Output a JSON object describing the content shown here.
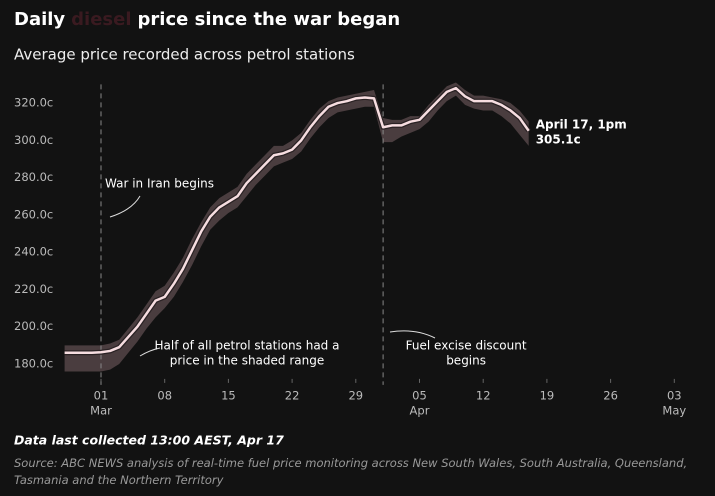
{
  "chart_data": {
    "type": "line",
    "title_parts": [
      "Daily",
      "diesel",
      "price since the war began"
    ],
    "subtitle": "Average price recorded across petrol stations",
    "note": "Data last collected 13:00 AEST, Apr 17",
    "source": "Source: ABC NEWS analysis of real-time fuel price monitoring across New South Wales, South Australia, Queensland, Tasmania and the Northern Territory",
    "color": "#f6dde0",
    "band_color": "#4a3d3f",
    "x": [
      "02-25",
      "02-26",
      "02-27",
      "02-28",
      "03-01",
      "03-02",
      "03-03",
      "03-04",
      "03-05",
      "03-06",
      "03-07",
      "03-08",
      "03-09",
      "03-10",
      "03-11",
      "03-12",
      "03-13",
      "03-14",
      "03-15",
      "03-16",
      "03-17",
      "03-18",
      "03-19",
      "03-20",
      "03-21",
      "03-22",
      "03-23",
      "03-24",
      "03-25",
      "03-26",
      "03-27",
      "03-28",
      "03-29",
      "03-30",
      "03-31",
      "04-01",
      "04-02",
      "04-03",
      "04-04",
      "04-05",
      "04-06",
      "04-07",
      "04-08",
      "04-09",
      "04-10",
      "04-11",
      "04-12",
      "04-13",
      "04-14",
      "04-15",
      "04-16",
      "04-17"
    ],
    "values": [
      186,
      186,
      186,
      186,
      186.3,
      187,
      189,
      194.5,
      200,
      207,
      214,
      216,
      223,
      231,
      241,
      251,
      259,
      264,
      267,
      270,
      277,
      282,
      287,
      292,
      293,
      295,
      300,
      307,
      313,
      318,
      320,
      321,
      322.5,
      323,
      322.5,
      307,
      308,
      308,
      310,
      311,
      316,
      321,
      326,
      328,
      323.6,
      321,
      321,
      321,
      319,
      316,
      312,
      305.1
    ],
    "low": [
      176,
      176,
      176,
      176,
      176,
      177,
      180,
      186,
      192,
      199,
      205,
      210,
      216,
      224,
      233,
      243,
      252,
      257,
      261,
      264,
      270,
      276,
      281,
      286,
      288,
      290,
      294,
      301,
      307,
      312,
      315,
      316,
      317,
      318,
      318,
      299,
      299,
      302,
      304,
      306,
      310,
      316,
      321,
      324,
      319,
      317,
      316,
      316,
      313,
      309,
      303,
      297
    ],
    "high": [
      190,
      190,
      190,
      190,
      190,
      191,
      193,
      199,
      205,
      212,
      219,
      222,
      229,
      237,
      247,
      256,
      264,
      269,
      272,
      275,
      282,
      287,
      292,
      297,
      297,
      300,
      304,
      311,
      317,
      321,
      323,
      324,
      325,
      326,
      327,
      312,
      311,
      311,
      313,
      313,
      319,
      324,
      329,
      331,
      327,
      324,
      324,
      323,
      322,
      320,
      316,
      310
    ],
    "xlim": [
      "02-24",
      "05-06"
    ],
    "xticks": [
      {
        "value": "03-01",
        "label": "01",
        "month": "Mar"
      },
      {
        "value": "03-08",
        "label": "08"
      },
      {
        "value": "03-15",
        "label": "15"
      },
      {
        "value": "03-22",
        "label": "22"
      },
      {
        "value": "03-29",
        "label": "29"
      },
      {
        "value": "04-05",
        "label": "05",
        "month": "Apr"
      },
      {
        "value": "04-12",
        "label": "12"
      },
      {
        "value": "04-19",
        "label": "19"
      },
      {
        "value": "04-26",
        "label": "26"
      },
      {
        "value": "05-03",
        "label": "03",
        "month": "May"
      }
    ],
    "ylim": [
      172,
      330
    ],
    "yticks": [
      {
        "value": 180,
        "label": "180.0c"
      },
      {
        "value": 200,
        "label": "200.0c"
      },
      {
        "value": 220,
        "label": "220.0c"
      },
      {
        "value": 240,
        "label": "240.0c"
      },
      {
        "value": 260,
        "label": "260.0c"
      },
      {
        "value": 280,
        "label": "280.0c"
      },
      {
        "value": 300,
        "label": "300.0c"
      },
      {
        "value": 320,
        "label": "320.0c"
      }
    ],
    "events": [
      {
        "x": "03-01",
        "text": "War in Iran begins"
      },
      {
        "x": "04-01",
        "text": [
          "Fuel excise discount",
          "begins"
        ]
      }
    ],
    "band_note": [
      "Half of all petrol stations had a",
      "price in the shaded range"
    ],
    "end_label": [
      "April 17, 1pm",
      "305.1c"
    ]
  }
}
